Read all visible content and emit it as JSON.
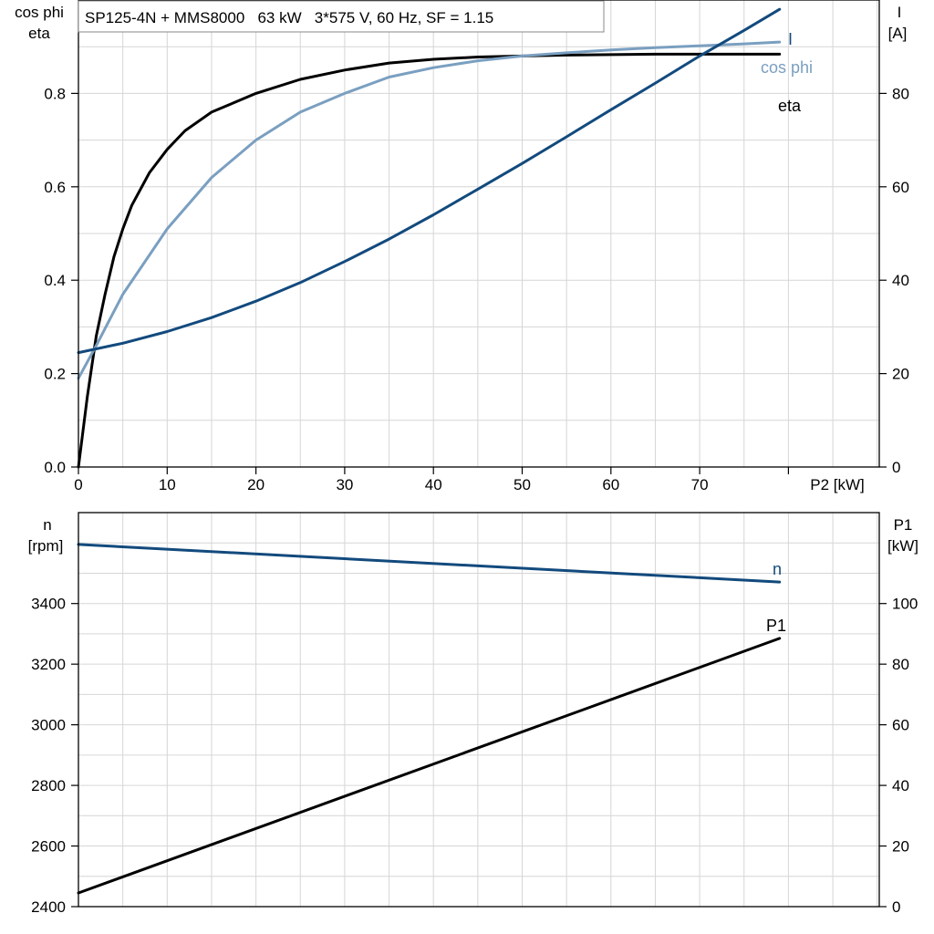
{
  "chart_data": [
    {
      "type": "line",
      "title": "SP125-4N + MMS8000   63 kW   3*575 V, 60 Hz, SF = 1.15",
      "xlabel": "P2 [kW]",
      "xlim": [
        0,
        90
      ],
      "x_ticks": [
        0,
        10,
        20,
        30,
        40,
        50,
        60,
        70
      ],
      "y_left": {
        "label_lines": [
          "cos phi",
          "eta"
        ],
        "lim": [
          0,
          1.0
        ],
        "ticks": [
          "0.0",
          "0.2",
          "0.4",
          "0.6",
          "0.8"
        ]
      },
      "y_right": {
        "label_lines": [
          "I",
          "[A]"
        ],
        "lim": [
          0,
          100
        ],
        "ticks": [
          "0",
          "20",
          "40",
          "60",
          "80"
        ]
      },
      "grid": true,
      "series": [
        {
          "name": "eta",
          "axis": "left",
          "color": "#000000",
          "x": [
            0,
            1,
            2,
            3,
            4,
            5,
            6,
            8,
            10,
            12,
            15,
            20,
            25,
            30,
            35,
            40,
            45,
            50,
            55,
            60,
            65,
            70,
            75,
            79
          ],
          "y": [
            0.0,
            0.15,
            0.28,
            0.37,
            0.45,
            0.51,
            0.56,
            0.63,
            0.68,
            0.72,
            0.76,
            0.8,
            0.83,
            0.85,
            0.865,
            0.873,
            0.878,
            0.88,
            0.882,
            0.883,
            0.884,
            0.884,
            0.884,
            0.884
          ]
        },
        {
          "name": "cos phi",
          "axis": "left",
          "color": "#7a9fc0",
          "x": [
            0,
            2,
            5,
            10,
            15,
            20,
            25,
            30,
            35,
            40,
            45,
            50,
            55,
            60,
            65,
            70,
            75,
            79
          ],
          "y": [
            0.19,
            0.26,
            0.37,
            0.51,
            0.62,
            0.7,
            0.76,
            0.8,
            0.835,
            0.855,
            0.87,
            0.88,
            0.887,
            0.893,
            0.898,
            0.902,
            0.906,
            0.91
          ]
        },
        {
          "name": "I",
          "axis": "right",
          "color": "#124a7d",
          "x": [
            0,
            5,
            10,
            15,
            20,
            25,
            30,
            35,
            40,
            45,
            50,
            55,
            60,
            65,
            70,
            75,
            79
          ],
          "y": [
            24.5,
            26.5,
            29,
            32,
            35.5,
            39.5,
            44,
            48.8,
            54,
            59.5,
            65,
            70.7,
            76.5,
            82.2,
            88,
            93.5,
            98
          ]
        }
      ]
    },
    {
      "type": "line",
      "xlim": [
        0,
        90
      ],
      "y_left": {
        "label_lines": [
          "n",
          "[rpm]"
        ],
        "lim": [
          2400,
          3700
        ],
        "ticks": [
          "2400",
          "2600",
          "2800",
          "3000",
          "3200",
          "3400"
        ]
      },
      "y_right": {
        "label_lines": [
          "P1",
          "[kW]"
        ],
        "lim": [
          0,
          130
        ],
        "ticks": [
          "0",
          "20",
          "40",
          "60",
          "80",
          "100"
        ]
      },
      "grid": true,
      "series": [
        {
          "name": "n",
          "axis": "left",
          "color": "#124a7d",
          "x": [
            0,
            79
          ],
          "y": [
            3595,
            3471
          ]
        },
        {
          "name": "P1",
          "axis": "right",
          "color": "#000000",
          "x": [
            0,
            79
          ],
          "y": [
            4.5,
            88.5
          ]
        }
      ]
    }
  ]
}
